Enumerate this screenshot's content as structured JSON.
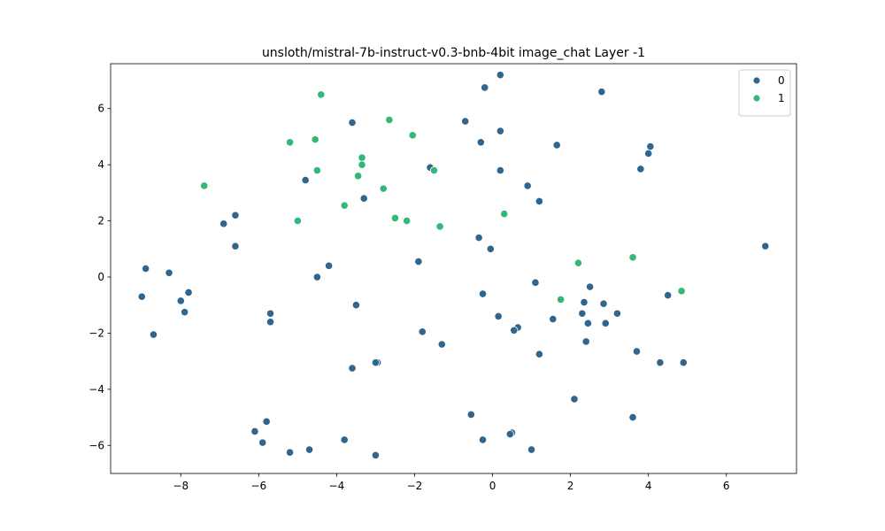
{
  "chart_data": {
    "type": "scatter",
    "title": "unsloth/mistral-7b-instruct-v0.3-bnb-4bit image_chat Layer -1",
    "xlabel": "",
    "ylabel": "",
    "xlim": [
      -9.8,
      7.8
    ],
    "ylim": [
      -7.0,
      7.6
    ],
    "xticks": [
      -8,
      -6,
      -4,
      -2,
      0,
      2,
      4,
      6
    ],
    "yticks": [
      -6,
      -4,
      -2,
      0,
      2,
      4,
      6
    ],
    "grid": false,
    "legend": {
      "position": "top-right"
    },
    "series": [
      {
        "name": "0",
        "color": "#30668e",
        "points": [
          [
            0.2,
            7.2
          ],
          [
            -0.2,
            6.75
          ],
          [
            2.8,
            6.6
          ],
          [
            -3.6,
            5.5
          ],
          [
            -0.7,
            5.55
          ],
          [
            0.2,
            5.2
          ],
          [
            -0.3,
            4.8
          ],
          [
            1.65,
            4.7
          ],
          [
            4.05,
            4.65
          ],
          [
            4.0,
            4.4
          ],
          [
            -1.6,
            3.9
          ],
          [
            3.8,
            3.85
          ],
          [
            0.2,
            3.8
          ],
          [
            -4.8,
            3.45
          ],
          [
            0.9,
            3.25
          ],
          [
            -3.3,
            2.8
          ],
          [
            1.2,
            2.7
          ],
          [
            -6.6,
            2.2
          ],
          [
            -6.9,
            1.9
          ],
          [
            -6.6,
            1.1
          ],
          [
            7.0,
            1.1
          ],
          [
            -0.35,
            1.4
          ],
          [
            -0.05,
            1.0
          ],
          [
            -1.9,
            0.55
          ],
          [
            -4.2,
            0.4
          ],
          [
            -8.9,
            0.3
          ],
          [
            -8.3,
            0.15
          ],
          [
            -4.5,
            0.0
          ],
          [
            1.1,
            -0.2
          ],
          [
            2.5,
            -0.35
          ],
          [
            -7.8,
            -0.55
          ],
          [
            -0.25,
            -0.6
          ],
          [
            4.5,
            -0.65
          ],
          [
            -9.0,
            -0.7
          ],
          [
            -8.0,
            -0.85
          ],
          [
            2.35,
            -0.9
          ],
          [
            2.85,
            -0.95
          ],
          [
            -3.5,
            -1.0
          ],
          [
            -7.9,
            -1.25
          ],
          [
            -5.7,
            -1.3
          ],
          [
            2.3,
            -1.3
          ],
          [
            3.2,
            -1.3
          ],
          [
            0.15,
            -1.4
          ],
          [
            1.55,
            -1.5
          ],
          [
            -5.7,
            -1.6
          ],
          [
            2.45,
            -1.65
          ],
          [
            2.9,
            -1.65
          ],
          [
            0.65,
            -1.8
          ],
          [
            0.55,
            -1.9
          ],
          [
            -1.8,
            -1.95
          ],
          [
            -8.7,
            -2.05
          ],
          [
            2.4,
            -2.3
          ],
          [
            -1.3,
            -2.4
          ],
          [
            3.7,
            -2.65
          ],
          [
            1.2,
            -2.75
          ],
          [
            4.3,
            -3.05
          ],
          [
            4.9,
            -3.05
          ],
          [
            -2.95,
            -3.05
          ],
          [
            -3.0,
            -3.05
          ],
          [
            -3.6,
            -3.25
          ],
          [
            2.1,
            -4.35
          ],
          [
            -0.55,
            -4.9
          ],
          [
            3.6,
            -5.0
          ],
          [
            -5.8,
            -5.15
          ],
          [
            -6.1,
            -5.5
          ],
          [
            0.5,
            -5.55
          ],
          [
            0.45,
            -5.6
          ],
          [
            -0.25,
            -5.8
          ],
          [
            -3.8,
            -5.8
          ],
          [
            -5.9,
            -5.9
          ],
          [
            1.0,
            -6.15
          ],
          [
            -4.7,
            -6.15
          ],
          [
            -5.2,
            -6.25
          ],
          [
            -3.0,
            -6.35
          ]
        ]
      },
      {
        "name": "1",
        "color": "#35b779",
        "points": [
          [
            -4.4,
            6.5
          ],
          [
            -2.65,
            5.6
          ],
          [
            -2.05,
            5.05
          ],
          [
            -4.55,
            4.9
          ],
          [
            -5.2,
            4.8
          ],
          [
            -3.35,
            4.25
          ],
          [
            -3.35,
            4.0
          ],
          [
            -4.5,
            3.8
          ],
          [
            -1.5,
            3.8
          ],
          [
            -3.45,
            3.6
          ],
          [
            -7.4,
            3.25
          ],
          [
            -2.8,
            3.15
          ],
          [
            -3.8,
            2.55
          ],
          [
            0.3,
            2.25
          ],
          [
            -2.5,
            2.1
          ],
          [
            -2.2,
            2.0
          ],
          [
            -5.0,
            2.0
          ],
          [
            -1.35,
            1.8
          ],
          [
            3.6,
            0.7
          ],
          [
            2.2,
            0.5
          ],
          [
            4.85,
            -0.5
          ],
          [
            1.75,
            -0.8
          ]
        ]
      }
    ]
  }
}
